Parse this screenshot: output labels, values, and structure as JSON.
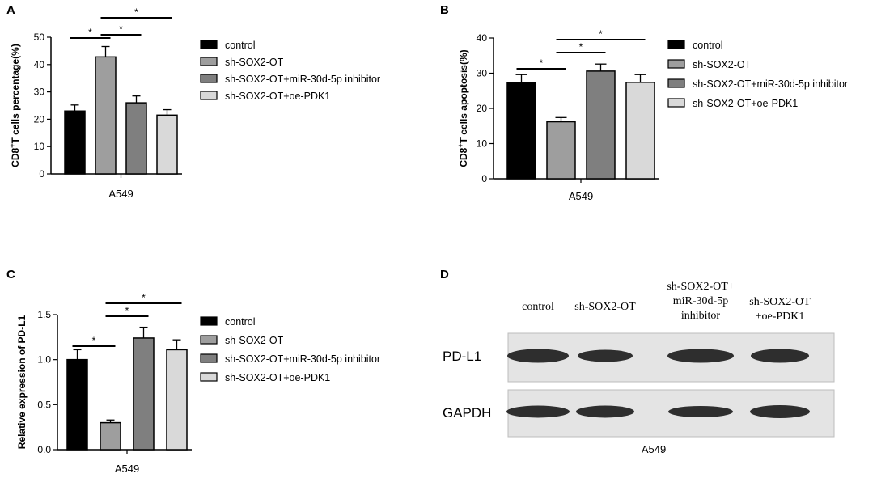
{
  "panels": {
    "A": "A",
    "B": "B",
    "C": "C",
    "D": "D"
  },
  "chart_data": [
    {
      "panel": "A",
      "type": "bar",
      "categories": [
        "control",
        "sh-SOX2-OT",
        "sh-SOX2-OT+miR-30d-5p inhibitor",
        "sh-SOX2-OT+oe-PDK1"
      ],
      "values": [
        23,
        42.8,
        26,
        21.5
      ],
      "errors": [
        2.2,
        3.8,
        2.5,
        2.0
      ],
      "colors": [
        "#000000",
        "#9e9e9e",
        "#7f7f7f",
        "#d9d9d9"
      ],
      "xlabel": "A549",
      "ylabel_pre": "CD8",
      "ylabel_sup": "+",
      "ylabel_post": "T cells percentage(%)",
      "ylim": [
        0,
        50
      ],
      "yticks": [
        0,
        10,
        20,
        30,
        40,
        50
      ],
      "significance": [
        {
          "from": 0,
          "to": 1,
          "label": "*"
        },
        {
          "from": 1,
          "to": 2,
          "label": "*"
        },
        {
          "from": 1,
          "to": 3,
          "label": "*"
        }
      ],
      "legend_position": "right"
    },
    {
      "panel": "B",
      "type": "bar",
      "categories": [
        "control",
        "sh-SOX2-OT",
        "sh-SOX2-OT+miR-30d-5p inhibitor",
        "sh-SOX2-OT+oe-PDK1"
      ],
      "values": [
        27.4,
        16.2,
        30.6,
        27.4
      ],
      "errors": [
        2.2,
        1.2,
        2.0,
        2.2
      ],
      "colors": [
        "#000000",
        "#9e9e9e",
        "#7f7f7f",
        "#d9d9d9"
      ],
      "xlabel": "A549",
      "ylabel_pre": "CD8",
      "ylabel_sup": "+",
      "ylabel_post": "T cells apoptosis(%)",
      "ylim": [
        0,
        40
      ],
      "yticks": [
        0,
        10,
        20,
        30,
        40
      ],
      "significance": [
        {
          "from": 0,
          "to": 1,
          "label": "*"
        },
        {
          "from": 1,
          "to": 2,
          "label": "*"
        },
        {
          "from": 1,
          "to": 3,
          "label": "*"
        }
      ],
      "legend_position": "right"
    },
    {
      "panel": "C",
      "type": "bar",
      "categories": [
        "control",
        "sh-SOX2-OT",
        "sh-SOX2-OT+miR-30d-5p inhibitor",
        "sh-SOX2-OT+oe-PDK1"
      ],
      "values": [
        1.0,
        0.3,
        1.24,
        1.11
      ],
      "errors": [
        0.11,
        0.03,
        0.12,
        0.11
      ],
      "colors": [
        "#000000",
        "#9e9e9e",
        "#7f7f7f",
        "#d9d9d9"
      ],
      "xlabel": "A549",
      "ylabel_pre": "Relative expression of PD-L1",
      "ylabel_sup": "",
      "ylabel_post": "",
      "ylim": [
        0,
        1.5
      ],
      "yticks": [
        "0.0",
        "0.5",
        "1.0",
        "1.5"
      ],
      "significance": [
        {
          "from": 0,
          "to": 1,
          "label": "*"
        },
        {
          "from": 1,
          "to": 2,
          "label": "*"
        },
        {
          "from": 1,
          "to": 3,
          "label": "*"
        }
      ],
      "legend_position": "right"
    }
  ],
  "legend": [
    {
      "label": "control",
      "color": "#000000"
    },
    {
      "label": "sh-SOX2-OT",
      "color": "#9e9e9e"
    },
    {
      "label": "sh-SOX2-OT+miR-30d-5p inhibitor",
      "color": "#7f7f7f"
    },
    {
      "label": "sh-SOX2-OT+oe-PDK1",
      "color": "#d9d9d9"
    }
  ],
  "blot": {
    "columns": [
      [
        "control"
      ],
      [
        "sh-SOX2-OT"
      ],
      [
        "sh-SOX2-OT+",
        "miR-30d-5p",
        "inhibitor"
      ],
      [
        "sh-SOX2-OT",
        "+oe-PDK1"
      ]
    ],
    "rows": [
      "PD-L1",
      "GAPDH"
    ],
    "xlabel": "A549"
  }
}
